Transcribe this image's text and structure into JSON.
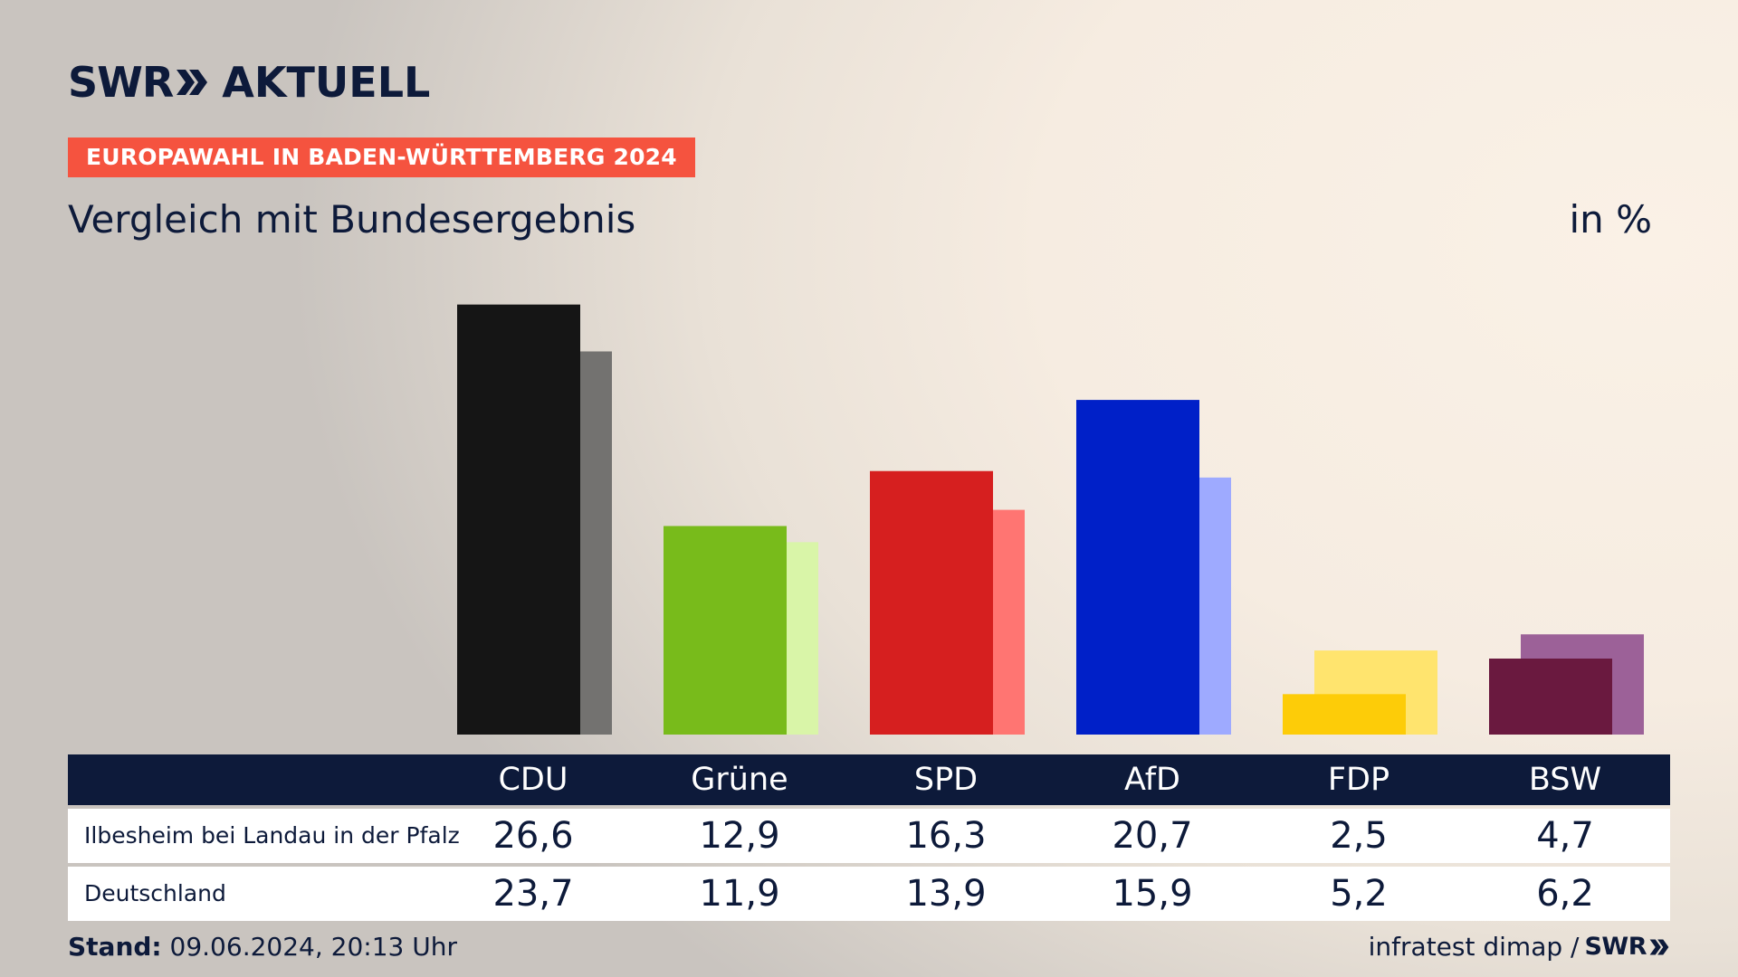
{
  "brand": {
    "name": "SWR",
    "product": "AKTUELL"
  },
  "kicker": "EUROPAWAHL IN BADEN-WÜRTTEMBERG 2024",
  "title": "Vergleich mit Bundesergebnis",
  "unit": "in %",
  "colors": {
    "navy": "#0d1a3a",
    "kicker": "#f5533f"
  },
  "chart_data": {
    "type": "bar",
    "title": "Vergleich mit Bundesergebnis",
    "categories": [
      "CDU",
      "Grüne",
      "SPD",
      "AfD",
      "FDP",
      "BSW"
    ],
    "series": [
      {
        "name": "Ilbesheim bei Landau in der Pfalz",
        "values": [
          26.6,
          12.9,
          16.3,
          20.7,
          2.5,
          4.7
        ],
        "colors": [
          "#151515",
          "#78bb1b",
          "#d61f1f",
          "#0020c8",
          "#fdcc08",
          "#6a193f"
        ]
      },
      {
        "name": "Deutschland",
        "values": [
          23.7,
          11.9,
          13.9,
          15.9,
          5.2,
          6.2
        ],
        "colors": [
          "#737270",
          "#d9f5a8",
          "#ff7572",
          "#9eaaff",
          "#ffe46e",
          "#9c6198"
        ]
      }
    ],
    "ylim": [
      0,
      27
    ]
  },
  "table": {
    "headers": [
      "CDU",
      "Grüne",
      "SPD",
      "AfD",
      "FDP",
      "BSW"
    ],
    "rows": [
      {
        "label": "Ilbesheim bei Landau in der Pfalz",
        "values": [
          "26,6",
          "12,9",
          "16,3",
          "20,7",
          "2,5",
          "4,7"
        ]
      },
      {
        "label": "Deutschland",
        "values": [
          "23,7",
          "11,9",
          "13,9",
          "15,9",
          "5,2",
          "6,2"
        ]
      }
    ]
  },
  "footer": {
    "stand_label": "Stand:",
    "stand_value": "09.06.2024, 20:13 Uhr",
    "source": "infratest dimap /",
    "source_brand": "SWR"
  }
}
